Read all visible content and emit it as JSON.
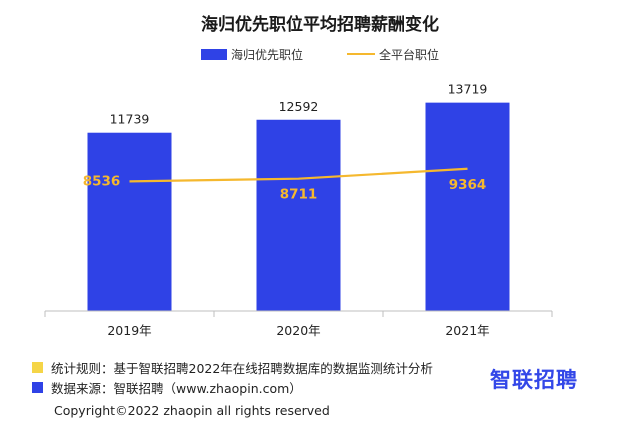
{
  "chart_data": {
    "type": "bar",
    "title": "海归优先职位平均招聘薪酬变化",
    "categories": [
      "2019年",
      "2020年",
      "2021年"
    ],
    "series": [
      {
        "name": "海归优先职位",
        "type": "bar",
        "values": [
          11739,
          12592,
          13719
        ],
        "color": "#2f42e6"
      },
      {
        "name": "全平台职位",
        "type": "line",
        "values": [
          8536,
          8711,
          9364
        ],
        "color": "#f5b82e"
      }
    ],
    "ylim": [
      0,
      16000
    ],
    "grid": false,
    "legend": "top-center"
  },
  "footer": {
    "rule_text": "统计规则：基于智联招聘2022年在线招聘数据库的数据监测统计分析",
    "rule_color": "#f5d547",
    "source_text": "数据来源：智联招聘（www.zhaopin.com）",
    "source_color": "#2f42e6",
    "brand": "智联招聘",
    "copyright": "Copyright©2022 zhaopin all rights reserved"
  }
}
